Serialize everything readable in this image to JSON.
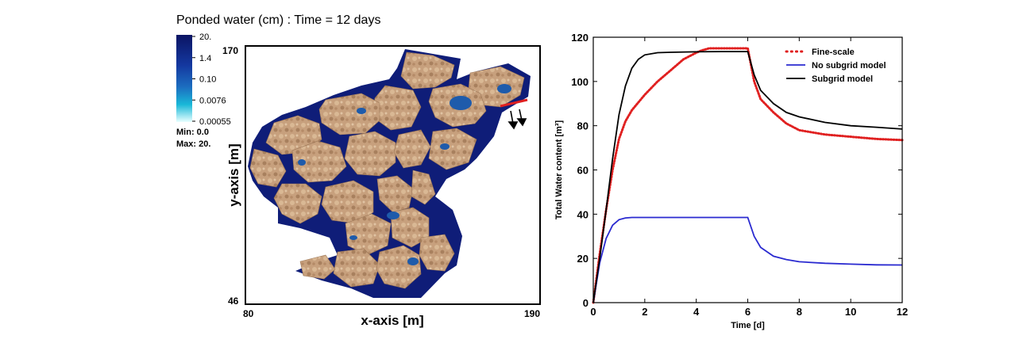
{
  "left_panel": {
    "title": "Ponded water (cm) : Time = 12 days",
    "colorbar": {
      "ticks": [
        "20.",
        "1.4",
        "0.10",
        "0.0076",
        "0.00055"
      ],
      "min_label": "Min: 0.0",
      "max_label": "Max: 20."
    },
    "xlabel": "x-axis [m]",
    "ylabel": "y-axis [m]",
    "x_ticks": [
      "80",
      "190"
    ],
    "y_ticks": [
      "170",
      "46"
    ],
    "colors": {
      "terrain": "#c9a382",
      "water": "#14207a",
      "pond": "#1f5aa8",
      "outlet": "#e02020"
    }
  },
  "chart_data": {
    "type": "line",
    "title": "",
    "xlabel": "Time [d]",
    "ylabel": "Total Water content [m³]",
    "xlim": [
      0,
      12
    ],
    "ylim": [
      0,
      120
    ],
    "x_ticks": [
      "0",
      "2",
      "4",
      "6",
      "8",
      "10",
      "12"
    ],
    "y_ticks": [
      "0",
      "20",
      "40",
      "60",
      "80",
      "100",
      "120"
    ],
    "grid": false,
    "legend_position": "top-right",
    "series": [
      {
        "name": "Fine-scale",
        "style": "dotted",
        "color": "#e02020",
        "x": [
          0,
          0.25,
          0.5,
          0.75,
          1.0,
          1.25,
          1.5,
          2.0,
          2.5,
          3.0,
          3.5,
          4.0,
          4.2,
          4.5,
          5.0,
          5.5,
          6.0,
          6.25,
          6.5,
          7.0,
          7.5,
          8.0,
          9.0,
          10.0,
          11.0,
          12.0
        ],
        "y": [
          0,
          22,
          42,
          60,
          74,
          82,
          87,
          94,
          100,
          105,
          110,
          113,
          114,
          115,
          115,
          115,
          115,
          100,
          92,
          86,
          81,
          78,
          76,
          75,
          74,
          73.5
        ]
      },
      {
        "name": "No subgrid model",
        "style": "solid",
        "color": "#2a2ad0",
        "x": [
          0,
          0.25,
          0.5,
          0.75,
          1.0,
          1.25,
          1.5,
          2.0,
          3.0,
          4.0,
          5.0,
          6.0,
          6.25,
          6.5,
          7.0,
          7.5,
          8.0,
          9.0,
          10.0,
          11.0,
          12.0
        ],
        "y": [
          0,
          18,
          29,
          35,
          37.5,
          38.3,
          38.5,
          38.5,
          38.5,
          38.5,
          38.5,
          38.5,
          30,
          25,
          21,
          19.5,
          18.5,
          17.8,
          17.4,
          17.1,
          17
        ]
      },
      {
        "name": "Subgrid model",
        "style": "solid",
        "color": "#000000",
        "x": [
          0,
          0.25,
          0.5,
          0.75,
          1.0,
          1.25,
          1.5,
          1.75,
          2.0,
          2.5,
          3.0,
          4.0,
          5.0,
          6.0,
          6.25,
          6.5,
          7.0,
          7.5,
          8.0,
          9.0,
          10.0,
          11.0,
          12.0
        ],
        "y": [
          0,
          20,
          42,
          65,
          85,
          98,
          106,
          110,
          112,
          113,
          113.2,
          113.4,
          113.5,
          113.5,
          103,
          96,
          90,
          86,
          84,
          81.5,
          80,
          79.3,
          78.5
        ]
      }
    ]
  }
}
